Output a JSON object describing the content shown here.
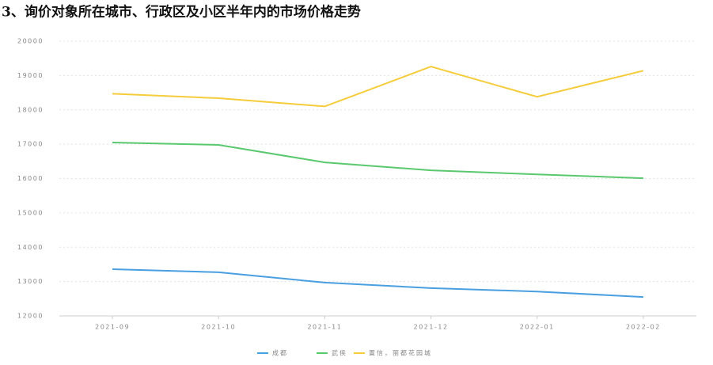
{
  "chart_data": {
    "type": "line",
    "title": "3、询价对象所在城市、行政区及小区半年内的市场价格走势",
    "categories": [
      "2021-09",
      "2021-10",
      "2021-11",
      "2021-12",
      "2022-01",
      "2022-02"
    ],
    "series": [
      {
        "name": "成都",
        "color": "#4a9fe0",
        "values": [
          13360,
          13270,
          12970,
          12810,
          12710,
          12550
        ]
      },
      {
        "name": "武侯",
        "color": "#5ac86e",
        "values": [
          17050,
          16980,
          16470,
          16240,
          16120,
          16010
        ]
      },
      {
        "name": "置信，丽都花园城",
        "color": "#f5cc3c",
        "values": [
          18470,
          18340,
          18100,
          19260,
          18380,
          19140
        ]
      }
    ],
    "ylim": [
      12000,
      20000
    ],
    "yticks": [
      12000,
      13000,
      14000,
      15000,
      16000,
      17000,
      18000,
      19000,
      20000
    ],
    "grid": true
  }
}
